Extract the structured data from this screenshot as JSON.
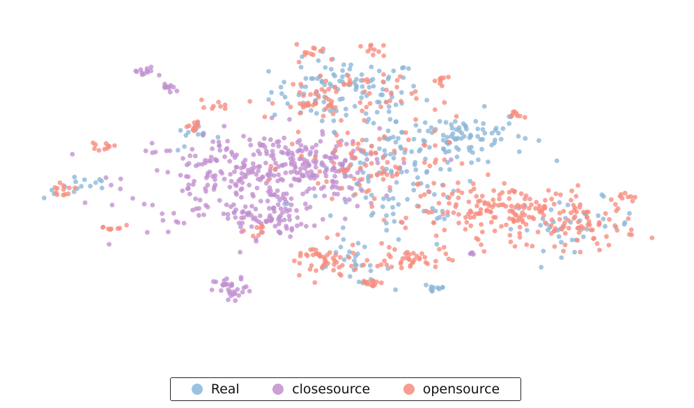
{
  "chart_data": {
    "type": "scatter",
    "title": "",
    "xlabel": "",
    "ylabel": "",
    "axes_visible": false,
    "grid": false,
    "legend_position": "bottom-center",
    "xlim": [
      0,
      100
    ],
    "ylim": [
      0,
      100
    ],
    "series": [
      {
        "name": "Real",
        "color": "#8ab6d9",
        "clusters": [
          {
            "cx": 50,
            "cy": 80,
            "sx": 6,
            "sy": 5,
            "n": 110
          },
          {
            "cx": 67,
            "cy": 66,
            "sx": 6,
            "sy": 4,
            "n": 90
          },
          {
            "cx": 57,
            "cy": 60,
            "sx": 5,
            "sy": 6,
            "n": 50
          },
          {
            "cx": 86,
            "cy": 38,
            "sx": 5,
            "sy": 4,
            "n": 40
          },
          {
            "cx": 51,
            "cy": 25,
            "sx": 3,
            "sy": 3,
            "n": 25
          },
          {
            "cx": 26,
            "cy": 65,
            "sx": 2,
            "sy": 2,
            "n": 12
          },
          {
            "cx": 8,
            "cy": 50,
            "sx": 3,
            "sy": 2,
            "n": 15
          },
          {
            "cx": 64,
            "cy": 18,
            "sx": 1,
            "sy": 1,
            "n": 10
          },
          {
            "cx": 57,
            "cy": 45,
            "sx": 8,
            "sy": 8,
            "n": 60
          }
        ]
      },
      {
        "name": "closesource",
        "color": "#c28fcf",
        "clusters": [
          {
            "cx": 35,
            "cy": 52,
            "sx": 10,
            "sy": 8,
            "n": 260
          },
          {
            "cx": 43,
            "cy": 57,
            "sx": 5,
            "sy": 4,
            "n": 120
          },
          {
            "cx": 37,
            "cy": 40,
            "sx": 3,
            "sy": 3,
            "n": 60
          },
          {
            "cx": 32,
            "cy": 17,
            "sx": 1.5,
            "sy": 2,
            "n": 30
          },
          {
            "cx": 18,
            "cy": 86,
            "sx": 1,
            "sy": 1,
            "n": 12
          },
          {
            "cx": 22,
            "cy": 81,
            "sx": 1,
            "sy": 0.8,
            "n": 10
          },
          {
            "cx": 70,
            "cy": 29,
            "sx": 0.5,
            "sy": 0.5,
            "n": 5
          }
        ]
      },
      {
        "name": "opensource",
        "color": "#f78c7e",
        "clusters": [
          {
            "cx": 75,
            "cy": 42,
            "sx": 7,
            "sy": 4,
            "n": 160
          },
          {
            "cx": 88,
            "cy": 38,
            "sx": 4,
            "sy": 4,
            "n": 60
          },
          {
            "cx": 49,
            "cy": 78,
            "sx": 6,
            "sy": 5,
            "n": 70
          },
          {
            "cx": 56,
            "cy": 56,
            "sx": 7,
            "sy": 7,
            "n": 90
          },
          {
            "cx": 46,
            "cy": 26,
            "sx": 3,
            "sy": 3,
            "n": 50
          },
          {
            "cx": 60,
            "cy": 27,
            "sx": 3,
            "sy": 2,
            "n": 40
          },
          {
            "cx": 5,
            "cy": 49,
            "sx": 1,
            "sy": 0.8,
            "n": 12
          },
          {
            "cx": 11,
            "cy": 62,
            "sx": 1,
            "sy": 1,
            "n": 10
          },
          {
            "cx": 26,
            "cy": 69,
            "sx": 1,
            "sy": 1,
            "n": 12
          },
          {
            "cx": 30,
            "cy": 76,
            "sx": 1,
            "sy": 1,
            "n": 8
          },
          {
            "cx": 44,
            "cy": 93,
            "sx": 1.2,
            "sy": 1,
            "n": 10
          },
          {
            "cx": 54,
            "cy": 93,
            "sx": 1,
            "sy": 1,
            "n": 10
          },
          {
            "cx": 13,
            "cy": 37,
            "sx": 1,
            "sy": 0.6,
            "n": 8
          },
          {
            "cx": 54,
            "cy": 20,
            "sx": 1,
            "sy": 1,
            "n": 12
          },
          {
            "cx": 77,
            "cy": 72,
            "sx": 1,
            "sy": 1,
            "n": 8
          },
          {
            "cx": 65,
            "cy": 84,
            "sx": 1,
            "sy": 1,
            "n": 8
          },
          {
            "cx": 94,
            "cy": 47,
            "sx": 0.8,
            "sy": 0.8,
            "n": 8
          },
          {
            "cx": 43,
            "cy": 75,
            "sx": 1,
            "sy": 1,
            "n": 10
          },
          {
            "cx": 36,
            "cy": 36,
            "sx": 1,
            "sy": 1,
            "n": 8
          }
        ]
      }
    ]
  },
  "legend": {
    "items": [
      {
        "label": "Real",
        "color": "#8ab6d9"
      },
      {
        "label": "closesource",
        "color": "#c28fcf"
      },
      {
        "label": "opensource",
        "color": "#f78c7e"
      }
    ]
  }
}
